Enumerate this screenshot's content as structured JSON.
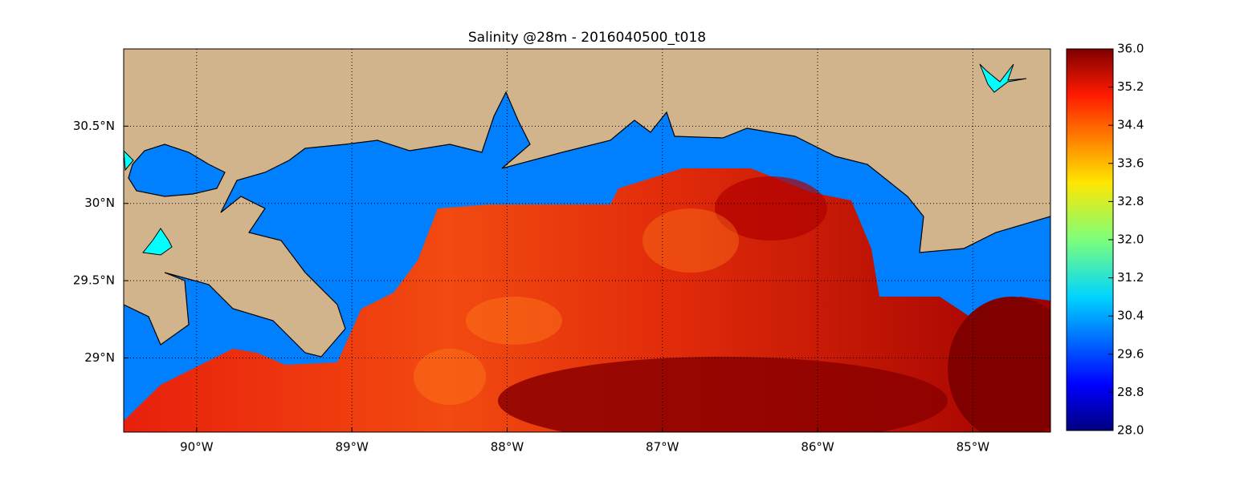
{
  "chart_data": {
    "type": "map",
    "title": "Salinity @28m - 2016040500_t018",
    "xlim": [
      -90.47,
      -84.5
    ],
    "xticks": [
      {
        "value": -90,
        "label": "90°W"
      },
      {
        "value": -89,
        "label": "89°W"
      },
      {
        "value": -88,
        "label": "88°W"
      },
      {
        "value": -87,
        "label": "87°W"
      },
      {
        "value": -86,
        "label": "86°W"
      },
      {
        "value": -85,
        "label": "85°W"
      }
    ],
    "ylim": [
      28.52,
      31.0
    ],
    "yticks": [
      {
        "value": 29,
        "label": "29°N"
      },
      {
        "value": 29.5,
        "label": "29.5°N"
      },
      {
        "value": 30,
        "label": "30°N"
      },
      {
        "value": 30.5,
        "label": "30.5°N"
      }
    ],
    "grid": true,
    "colorbar": {
      "lim": [
        28,
        36
      ],
      "ticks": [
        {
          "value": 28,
          "label": "28.0"
        },
        {
          "value": 28.8,
          "label": "28.8"
        },
        {
          "value": 29.6,
          "label": "29.6"
        },
        {
          "value": 30.4,
          "label": "30.4"
        },
        {
          "value": 31.2,
          "label": "31.2"
        },
        {
          "value": 32,
          "label": "32.0"
        },
        {
          "value": 32.8,
          "label": "32.8"
        },
        {
          "value": 33.6,
          "label": "33.6"
        },
        {
          "value": 34.4,
          "label": "34.4"
        },
        {
          "value": 35.2,
          "label": "35.2"
        },
        {
          "value": 36,
          "label": "36.0"
        }
      ]
    }
  }
}
